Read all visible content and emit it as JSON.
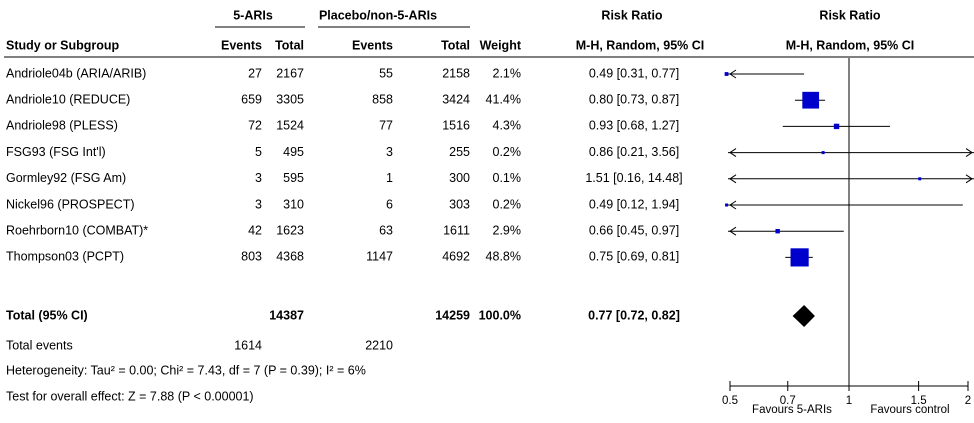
{
  "chart_data": {
    "type": "forest",
    "column_groups": [
      "5-ARIs",
      "Placebo/non-5-ARIs",
      "Risk Ratio",
      "Risk Ratio"
    ],
    "columns": [
      "Study or Subgroup",
      "Events",
      "Total",
      "Events",
      "Total",
      "Weight",
      "M-H, Random, 95% CI",
      "M-H, Random, 95% CI"
    ],
    "categories": [
      "Andriole04b (ARIA/ARIB)",
      "Andriole10 (REDUCE)",
      "Andriole98 (PLESS)",
      "FSG93 (FSG Int'l)",
      "Gormley92 (FSG Am)",
      "Nickel96 (PROSPECT)",
      "Roehrborn10 (COMBAT)*",
      "Thompson03 (PCPT)"
    ],
    "events_treatment": [
      27,
      659,
      72,
      5,
      3,
      3,
      42,
      803
    ],
    "total_treatment": [
      2167,
      3305,
      1524,
      495,
      595,
      310,
      1623,
      4368
    ],
    "events_control": [
      55,
      858,
      77,
      3,
      1,
      6,
      63,
      1147
    ],
    "total_control": [
      2158,
      3424,
      1516,
      255,
      300,
      303,
      1611,
      4692
    ],
    "weights": [
      2.1,
      41.4,
      4.3,
      0.2,
      0.1,
      0.2,
      2.9,
      48.8
    ],
    "weight_labels": [
      "2.1%",
      "41.4%",
      "4.3%",
      "0.2%",
      "0.1%",
      "0.2%",
      "2.9%",
      "48.8%"
    ],
    "values": [
      0.49,
      0.8,
      0.93,
      0.86,
      1.51,
      0.49,
      0.66,
      0.75
    ],
    "lower": [
      0.31,
      0.73,
      0.68,
      0.21,
      0.16,
      0.12,
      0.45,
      0.69
    ],
    "upper": [
      0.77,
      0.87,
      1.27,
      3.56,
      14.48,
      1.94,
      0.97,
      0.81
    ],
    "value_labels": [
      "0.49 [0.31, 0.77]",
      "0.80 [0.73, 0.87]",
      "0.93 [0.68, 1.27]",
      "0.86 [0.21, 3.56]",
      "1.51 [0.16, 14.48]",
      "0.49 [0.12, 1.94]",
      "0.66 [0.45, 0.97]",
      "0.75 [0.69, 0.81]"
    ],
    "total": {
      "label": "Total (95% CI)",
      "total_treatment": 14387,
      "total_control": 14259,
      "weight": 100.0,
      "weight_label": "100.0%",
      "value": 0.77,
      "lower": 0.72,
      "upper": 0.82,
      "value_label": "0.77 [0.72, 0.82]"
    },
    "total_events": {
      "label": "Total events",
      "treatment": 1614,
      "control": 2210
    },
    "heterogeneity": "Heterogeneity: Tau² = 0.00; Chi² = 7.43, df = 7 (P = 0.39); I² = 6%",
    "overall_effect": "Test for overall effect: Z = 7.88 (P < 0.00001)",
    "log_scale": true,
    "xlim": [
      0.5,
      2
    ],
    "xticks": [
      0.5,
      0.7,
      1,
      1.5,
      2
    ],
    "xlabel_left": "Favours 5-ARIs",
    "xlabel_right": "Favours control",
    "color": "#0000cc"
  }
}
